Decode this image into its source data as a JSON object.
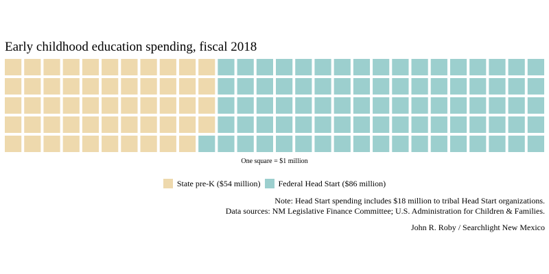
{
  "chart_data": {
    "type": "waffle",
    "title": "Early childhood education spending, fiscal 2018",
    "rows": 5,
    "unit_note": "One square = $1 million",
    "series": [
      {
        "name": "State pre-K ($54 million)",
        "value": 54,
        "color": "#eed9ad"
      },
      {
        "name": "Federal Head Start ($86 million)",
        "value": 86,
        "color": "#9ccfce"
      }
    ],
    "legend_position": "bottom"
  },
  "notes": {
    "line1": "Note: Head Start spending includes $18 million to tribal Head Start organizations.",
    "line2": "Data sources: NM Legislative Finance Committee; U.S. Administration for Children & Families."
  },
  "credit": "John R. Roby / Searchlight New Mexico"
}
